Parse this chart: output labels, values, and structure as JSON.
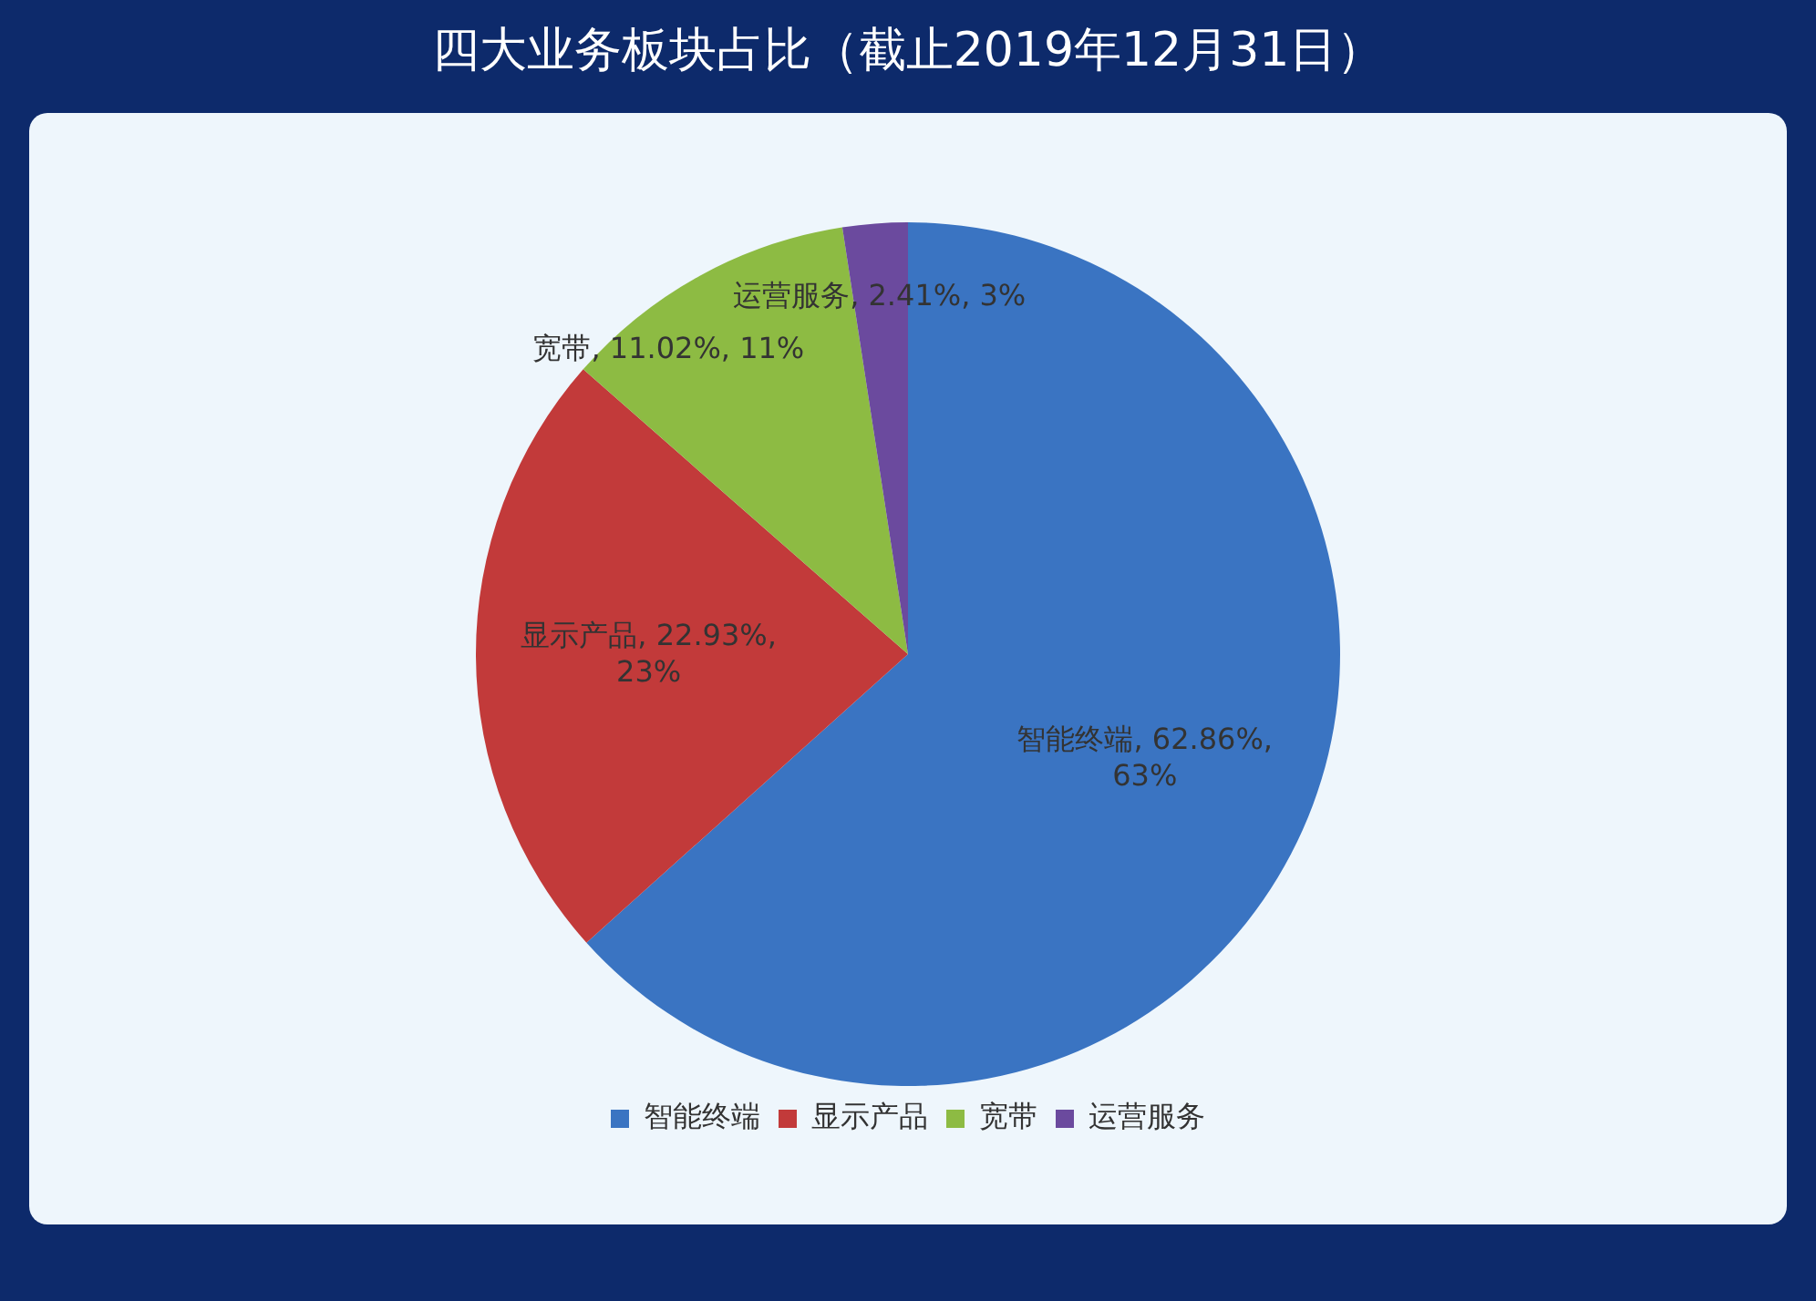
{
  "chart_data": {
    "type": "pie",
    "title": "四大业务板块占比（截止2019年12月31日）",
    "categories": [
      "智能终端",
      "显示产品",
      "宽带",
      "运营服务"
    ],
    "values": [
      62.86,
      22.93,
      11.02,
      2.41
    ],
    "colors": [
      "#3a74c2",
      "#c23a3a",
      "#8dbb43",
      "#6b4a9e"
    ],
    "value_labels": [
      "智能终端, 62.86%, 63%",
      "显示产品, 22.93%, 23%",
      "宽带, 11.02%, 11%",
      "运营服务, 2.41%, 3%"
    ],
    "legend": "bottom"
  }
}
